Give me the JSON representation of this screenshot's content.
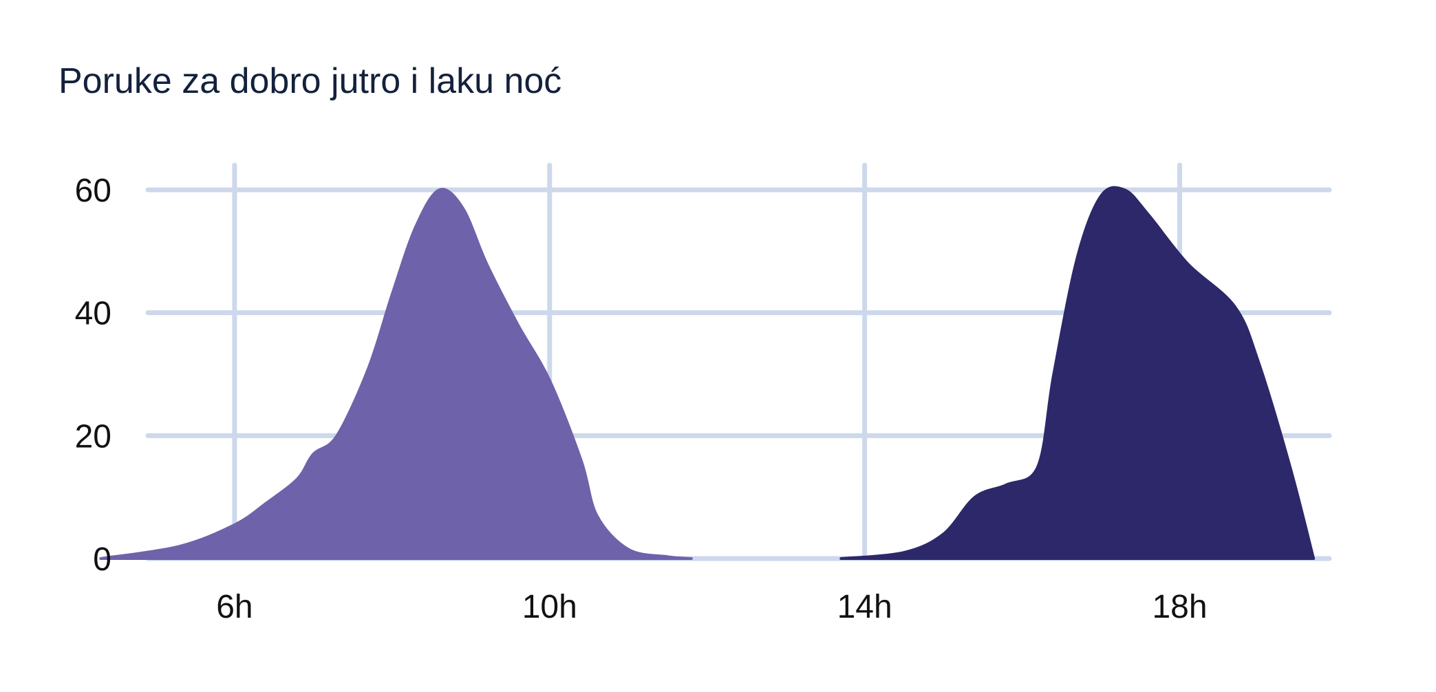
{
  "chart_data": {
    "type": "area",
    "title": "Poruke za dobro jutro i laku noć",
    "xlabel": "",
    "ylabel": "",
    "xlim": [
      4.9,
      19.9
    ],
    "ylim": [
      0,
      60
    ],
    "x_ticks": [
      {
        "value": 6,
        "label": "6h"
      },
      {
        "value": 10,
        "label": "10h"
      },
      {
        "value": 14,
        "label": "14h"
      },
      {
        "value": 18,
        "label": "18h"
      }
    ],
    "y_ticks": [
      {
        "value": 0,
        "label": "0"
      },
      {
        "value": 20,
        "label": "20"
      },
      {
        "value": 40,
        "label": "40"
      },
      {
        "value": 60,
        "label": "60"
      }
    ],
    "grid": true,
    "series": [
      {
        "color": "#6e62aa",
        "points": [
          [
            4.3,
            0
          ],
          [
            5.3,
            2
          ],
          [
            6.0,
            5.5
          ],
          [
            6.4,
            9
          ],
          [
            6.8,
            13
          ],
          [
            7.0,
            17
          ],
          [
            7.3,
            20
          ],
          [
            7.7,
            31
          ],
          [
            8.0,
            43
          ],
          [
            8.3,
            54
          ],
          [
            8.6,
            60
          ],
          [
            8.9,
            57
          ],
          [
            9.2,
            48
          ],
          [
            9.6,
            38
          ],
          [
            10.0,
            29
          ],
          [
            10.4,
            16
          ],
          [
            10.6,
            7
          ],
          [
            11.0,
            1.5
          ],
          [
            11.5,
            0.3
          ],
          [
            11.8,
            0
          ]
        ]
      },
      {
        "color": "#2c286a",
        "points": [
          [
            13.7,
            0
          ],
          [
            14.5,
            1
          ],
          [
            15.0,
            4
          ],
          [
            15.4,
            10
          ],
          [
            15.8,
            12
          ],
          [
            16.2,
            15
          ],
          [
            16.4,
            30
          ],
          [
            16.7,
            49
          ],
          [
            17.0,
            59
          ],
          [
            17.3,
            60
          ],
          [
            17.6,
            56
          ],
          [
            18.1,
            48
          ],
          [
            18.7,
            41
          ],
          [
            19.0,
            32
          ],
          [
            19.4,
            15
          ],
          [
            19.7,
            0
          ]
        ]
      }
    ]
  }
}
